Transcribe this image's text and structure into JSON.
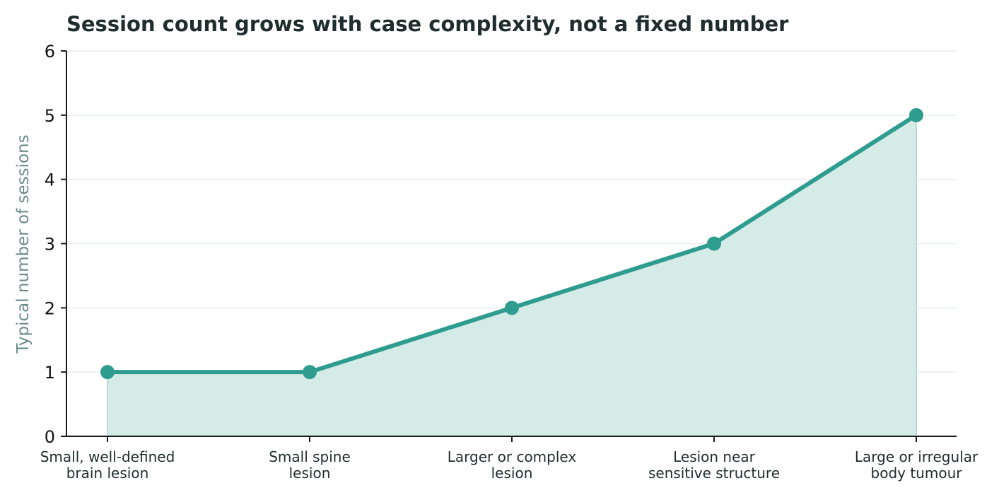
{
  "chart_data": {
    "type": "area",
    "title": "Session count grows with case complexity, not a fixed number",
    "xlabel": "",
    "ylabel": "Typical number of sessions",
    "categories": [
      [
        "Small, well-defined",
        "brain lesion"
      ],
      [
        "Small spine",
        "lesion"
      ],
      [
        "Larger or complex",
        "lesion"
      ],
      [
        "Lesion near",
        "sensitive structure"
      ],
      [
        "Large or irregular",
        "body tumour"
      ]
    ],
    "values": [
      1,
      1,
      2,
      3,
      5
    ],
    "ylim": [
      0,
      6
    ],
    "yticks": [
      "0",
      "1",
      "2",
      "3",
      "4",
      "5",
      "6"
    ],
    "grid": "horizontal",
    "legend": "none",
    "colors": {
      "line": "#2e9c8f",
      "fill": "#d4ebe7",
      "grid": "#e8ecec",
      "axis": "#1a1a1a",
      "title": "#1f2d2e",
      "ylabel": "#6a8a8c",
      "xtick": "#1f2d2e",
      "ytick": "#111111"
    }
  }
}
